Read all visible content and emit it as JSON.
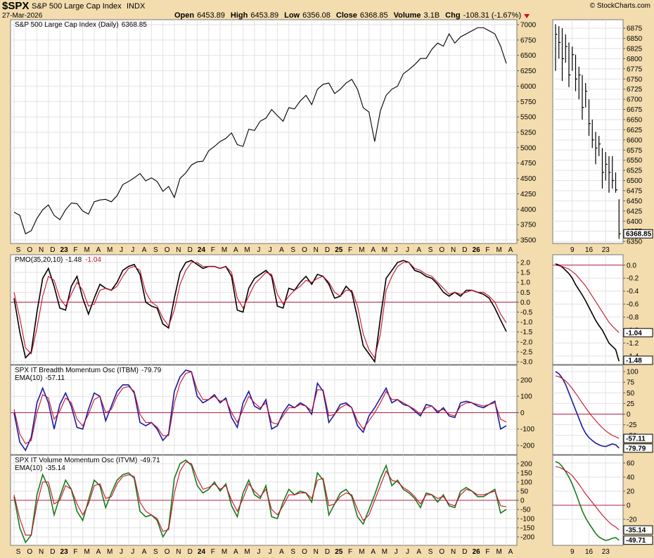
{
  "header": {
    "symbol": "$SPX",
    "name": "S&P 500 Large Cap Index",
    "exchange": "INDX",
    "date": "27-Mar-2026",
    "quote": [
      {
        "label": "Open",
        "value": "6453.89"
      },
      {
        "label": "High",
        "value": "6453.89"
      },
      {
        "label": "Low",
        "value": "6356.08"
      },
      {
        "label": "Close",
        "value": "6368.85"
      },
      {
        "label": "Volume",
        "value": "3.1B"
      },
      {
        "label": "Chg",
        "value": "-108.31 (-1.67%)"
      }
    ],
    "credit": "© StockCharts.com"
  },
  "chart_data": [
    {
      "type": "line",
      "grid": true,
      "categories": [
        "S",
        null,
        "O",
        null,
        "N",
        null,
        "D",
        null,
        "23",
        null,
        "F",
        null,
        "M",
        null,
        "A",
        null,
        "M",
        null,
        "J",
        null,
        "J",
        null,
        "A",
        null,
        "S",
        null,
        "O",
        null,
        "N",
        null,
        "D",
        null,
        "24",
        null,
        "F",
        null,
        "M",
        null,
        "A",
        null,
        "M",
        null,
        "J",
        null,
        "J",
        null,
        "A",
        null,
        "S",
        null,
        "O",
        null,
        "N",
        null,
        "D",
        null,
        "25",
        null,
        "F",
        null,
        "M",
        null,
        "A",
        null,
        "M",
        null,
        "J",
        null,
        "J",
        null,
        "A",
        null,
        "S",
        null,
        "O",
        null,
        "N",
        null,
        "D",
        null,
        "26",
        null,
        "F",
        null,
        "M",
        null,
        "A"
      ],
      "series": [
        {
          "name": "S&P 500 Large Cap Index (Daily)",
          "color": "#000000",
          "values": [
            3950,
            3900,
            3600,
            3650,
            3850,
            3990,
            4070,
            3900,
            3830,
            3990,
            4100,
            4090,
            3970,
            3920,
            4120,
            4150,
            4160,
            4120,
            4220,
            4400,
            4450,
            4510,
            4580,
            4460,
            4510,
            4450,
            4290,
            4370,
            4190,
            4500,
            4590,
            4720,
            4770,
            4780,
            4950,
            5020,
            5100,
            5150,
            5240,
            5050,
            5020,
            5300,
            5280,
            5430,
            5480,
            5620,
            5520,
            5430,
            5650,
            5630,
            5760,
            5850,
            5700,
            5950,
            6030,
            6050,
            5880,
            5950,
            6050,
            6110,
            5950,
            5650,
            5580,
            5100,
            5600,
            5850,
            5950,
            6000,
            6200,
            6270,
            6350,
            6450,
            6450,
            6600,
            6700,
            6650,
            6850,
            6700,
            6800,
            6850,
            6900,
            6950,
            6950,
            6900,
            6850,
            6650,
            6368.85
          ]
        }
      ],
      "ylim": [
        3443,
        7080
      ],
      "yticks": [
        3500,
        3750,
        4000,
        4250,
        4500,
        4750,
        5000,
        5250,
        5500,
        5750,
        6000,
        6250,
        6500,
        6750,
        7000
      ]
    },
    {
      "type": "line",
      "grid": true,
      "zero_line": true,
      "series": [
        {
          "name": "PMO(35,20,10)",
          "color": "#000000",
          "values": [
            0.2,
            -1.5,
            -2.8,
            -2.5,
            -0.5,
            1.2,
            1.7,
            0.8,
            -0.3,
            -0.4,
            0.8,
            1.3,
            0.2,
            -0.6,
            0.2,
            0.9,
            0.7,
            0.6,
            1.0,
            1.6,
            1.8,
            1.9,
            1.4,
            0.0,
            -0.2,
            -0.3,
            -1.1,
            -1.3,
            0.2,
            1.5,
            2.0,
            2.1,
            1.9,
            1.7,
            1.8,
            1.8,
            1.7,
            1.8,
            1.3,
            -0.4,
            -0.5,
            0.7,
            1.2,
            1.4,
            1.6,
            1.3,
            -0.2,
            -0.3,
            0.7,
            0.6,
            1.0,
            1.3,
            0.9,
            1.4,
            1.3,
            0.9,
            0.2,
            0.3,
            0.8,
            0.5,
            -0.8,
            -2.2,
            -2.6,
            -3.0,
            -0.8,
            1.2,
            1.6,
            2.0,
            2.1,
            2.0,
            1.6,
            1.5,
            1.3,
            1.2,
            0.9,
            0.5,
            0.3,
            0.5,
            0.3,
            0.6,
            0.6,
            0.5,
            0.4,
            0.2,
            -0.3,
            -0.9,
            -1.48
          ]
        },
        {
          "color": "#c8102e",
          "values": [
            0.5,
            -0.8,
            -2.3,
            -2.6,
            -1.3,
            0.3,
            1.3,
            1.1,
            0.2,
            -0.2,
            0.4,
            1.0,
            0.6,
            -0.2,
            -0.1,
            0.6,
            0.7,
            0.6,
            0.8,
            1.3,
            1.7,
            1.8,
            1.6,
            0.5,
            0.0,
            -0.2,
            -0.8,
            -1.2,
            -0.4,
            0.9,
            1.6,
            2.0,
            2.0,
            1.8,
            1.8,
            1.8,
            1.7,
            1.8,
            1.5,
            0.2,
            -0.3,
            0.3,
            0.9,
            1.2,
            1.5,
            1.4,
            0.4,
            -0.1,
            0.3,
            0.6,
            0.8,
            1.1,
            1.0,
            1.2,
            1.3,
            1.0,
            0.5,
            0.3,
            0.6,
            0.6,
            -0.2,
            -1.6,
            -2.4,
            -2.8,
            -1.6,
            0.6,
            1.3,
            1.8,
            2.0,
            2.0,
            1.7,
            1.6,
            1.4,
            1.3,
            1.0,
            0.7,
            0.4,
            0.5,
            0.4,
            0.5,
            0.6,
            0.5,
            0.5,
            0.3,
            0.0,
            -0.6,
            -1.04
          ]
        }
      ],
      "ylim": [
        -3.14,
        2.39
      ],
      "yticks": [
        {
          "value": 2,
          "label": "2.0"
        },
        1.5,
        {
          "value": 1,
          "label": "1.0"
        },
        0.5,
        {
          "value": 0,
          "label": "0.0"
        },
        -0.5,
        {
          "value": -1,
          "label": "-1.0"
        },
        -1.5,
        {
          "value": -2,
          "label": "-2.0"
        },
        -2.5,
        {
          "value": -3,
          "label": "-3.0"
        }
      ]
    },
    {
      "type": "line",
      "grid": true,
      "zero_line": true,
      "series": [
        {
          "name": "SPX IT Breadth Momentum Osc (ITBM)",
          "color": "#1a1aa0",
          "values": [
            0,
            -180,
            -230,
            -150,
            60,
            150,
            60,
            -100,
            50,
            120,
            40,
            -90,
            -100,
            20,
            120,
            100,
            -50,
            40,
            130,
            170,
            170,
            120,
            -60,
            -80,
            -60,
            -100,
            -170,
            -130,
            130,
            220,
            260,
            250,
            100,
            60,
            80,
            110,
            60,
            90,
            -30,
            -90,
            60,
            130,
            40,
            20,
            80,
            -100,
            -80,
            0,
            50,
            30,
            60,
            40,
            -10,
            180,
            130,
            -60,
            -10,
            50,
            60,
            30,
            -80,
            -120,
            -20,
            30,
            90,
            150,
            60,
            80,
            50,
            40,
            10,
            -20,
            50,
            40,
            0,
            30,
            -20,
            -30,
            60,
            70,
            60,
            40,
            30,
            50,
            70,
            -100,
            -79.79
          ]
        },
        {
          "name": "EMA(10)",
          "color": "#c8102e",
          "values": [
            20,
            -130,
            -190,
            -170,
            0,
            110,
            90,
            -40,
            10,
            90,
            60,
            -40,
            -80,
            -10,
            80,
            100,
            0,
            20,
            100,
            150,
            160,
            130,
            -10,
            -60,
            -60,
            -90,
            -140,
            -140,
            60,
            180,
            240,
            250,
            140,
            80,
            80,
            100,
            70,
            80,
            0,
            -60,
            20,
            100,
            60,
            30,
            60,
            -60,
            -70,
            -20,
            30,
            30,
            50,
            40,
            10,
            140,
            140,
            -20,
            -10,
            30,
            50,
            30,
            -50,
            -100,
            -50,
            0,
            60,
            130,
            80,
            80,
            60,
            40,
            20,
            -10,
            30,
            40,
            10,
            20,
            -10,
            -20,
            40,
            60,
            60,
            50,
            40,
            50,
            60,
            -40,
            -57.11
          ]
        }
      ],
      "ylim": [
        -256,
        290
      ],
      "yticks": [
        200,
        100,
        0,
        -100,
        -200
      ]
    },
    {
      "type": "line",
      "grid": true,
      "zero_line": true,
      "series": [
        {
          "name": "SPX IT Volume Momentum Osc (ITVM)",
          "color": "#1a7a1a",
          "values": [
            20,
            -150,
            -230,
            -190,
            30,
            140,
            70,
            -80,
            20,
            110,
            60,
            -60,
            -110,
            0,
            110,
            80,
            -40,
            40,
            110,
            140,
            150,
            120,
            -60,
            -90,
            -80,
            -110,
            -200,
            -150,
            120,
            200,
            220,
            190,
            80,
            40,
            60,
            100,
            50,
            90,
            -30,
            -90,
            40,
            110,
            30,
            10,
            80,
            -90,
            -100,
            -10,
            60,
            30,
            50,
            40,
            -10,
            150,
            110,
            -80,
            -20,
            40,
            60,
            20,
            -90,
            -130,
            -50,
            30,
            120,
            190,
            80,
            110,
            60,
            40,
            10,
            -40,
            40,
            30,
            -10,
            30,
            -30,
            -40,
            50,
            70,
            50,
            20,
            20,
            40,
            60,
            -70,
            -49.71
          ]
        },
        {
          "name": "EMA(10)",
          "color": "#c8102e",
          "values": [
            30,
            -100,
            -190,
            -190,
            -20,
            100,
            100,
            -20,
            0,
            80,
            60,
            -20,
            -80,
            -20,
            80,
            90,
            10,
            20,
            90,
            130,
            140,
            130,
            -10,
            -60,
            -80,
            -100,
            -170,
            -160,
            40,
            160,
            210,
            200,
            120,
            60,
            70,
            90,
            60,
            80,
            0,
            -60,
            10,
            90,
            50,
            20,
            60,
            -50,
            -80,
            -30,
            30,
            30,
            40,
            40,
            10,
            110,
            120,
            -30,
            -20,
            20,
            40,
            30,
            -50,
            -110,
            -80,
            0,
            80,
            160,
            110,
            100,
            70,
            50,
            20,
            -20,
            30,
            30,
            10,
            20,
            -20,
            -30,
            30,
            60,
            50,
            30,
            30,
            40,
            50,
            -30,
            -35.14
          ]
        }
      ],
      "ylim": [
        -246,
        246
      ],
      "yticks": [
        200,
        150,
        100,
        50,
        0,
        -50,
        -100,
        -150,
        -200
      ]
    },
    {
      "type": "hlc",
      "grid": true,
      "categories": [
        null,
        null,
        null,
        null,
        null,
        "9",
        null,
        null,
        null,
        null,
        "16",
        null,
        null,
        null,
        null,
        "23",
        null,
        null,
        null,
        null
      ],
      "high": [
        6885,
        6880,
        6875,
        6860,
        6840,
        6830,
        6810,
        6780,
        6760,
        6740,
        6700,
        6650,
        6620,
        6610,
        6580,
        6570,
        6560,
        6560,
        6520,
        6453.89
      ],
      "low": [
        6770,
        6800,
        6745,
        6790,
        6730,
        6770,
        6720,
        6700,
        6650,
        6680,
        6610,
        6580,
        6540,
        6560,
        6480,
        6500,
        6470,
        6480,
        6470,
        6356.08
      ],
      "close": [
        6860,
        6840,
        6800,
        6830,
        6760,
        6810,
        6750,
        6760,
        6680,
        6720,
        6640,
        6600,
        6580,
        6590,
        6520,
        6540,
        6520,
        6500,
        6477,
        6368.85
      ],
      "color": "#000000",
      "ylim": [
        6345,
        6896
      ],
      "yticks": [
        6350,
        6375,
        6400,
        6425,
        6450,
        6475,
        6500,
        6525,
        6550,
        6575,
        6600,
        6625,
        6650,
        6675,
        6700,
        6725,
        6750,
        6775,
        6800,
        6825,
        6850,
        6875
      ]
    },
    {
      "type": "line",
      "grid": true,
      "zero_line": true,
      "series": [
        {
          "color": "#000000",
          "values": [
            0.02,
            0.0,
            -0.03,
            -0.08,
            -0.13,
            -0.2,
            -0.3,
            -0.38,
            -0.46,
            -0.55,
            -0.65,
            -0.75,
            -0.85,
            -0.93,
            -1.0,
            -1.1,
            -1.2,
            -1.25,
            -1.3,
            -1.48
          ]
        },
        {
          "color": "#c8102e",
          "values": [
            0.0,
            -0.01,
            -0.02,
            -0.04,
            -0.06,
            -0.1,
            -0.14,
            -0.2,
            -0.26,
            -0.32,
            -0.4,
            -0.48,
            -0.56,
            -0.64,
            -0.72,
            -0.8,
            -0.88,
            -0.94,
            -0.99,
            -1.04
          ]
        }
      ],
      "ylim": [
        -1.53,
        0.16
      ],
      "yticks": [
        {
          "value": 0,
          "label": "0.0"
        },
        -0.2,
        -0.4,
        -0.6,
        -0.8,
        {
          "value": -1,
          "label": "-1.0"
        },
        -1.2,
        -1.4
      ]
    },
    {
      "type": "line",
      "grid": true,
      "zero_line": true,
      "series": [
        {
          "color": "#1a1aa0",
          "values": [
            100,
            95,
            85,
            70,
            50,
            30,
            10,
            -10,
            -30,
            -45,
            -55,
            -62,
            -68,
            -72,
            -75,
            -76,
            -73,
            -70,
            -72,
            -79.79
          ]
        },
        {
          "color": "#c8102e",
          "values": [
            90,
            88,
            84,
            78,
            70,
            60,
            49,
            38,
            26,
            15,
            4,
            -6,
            -15,
            -24,
            -32,
            -39,
            -45,
            -50,
            -53,
            -57.11
          ]
        }
      ],
      "ylim": [
        -95,
        115
      ],
      "yticks": [
        100,
        75,
        50,
        25,
        0,
        -25,
        -50,
        -75
      ]
    },
    {
      "type": "line",
      "grid": true,
      "zero_line": true,
      "series": [
        {
          "color": "#1a7a1a",
          "values": [
            62,
            60,
            55,
            48,
            40,
            30,
            18,
            5,
            -8,
            -18,
            -26,
            -33,
            -40,
            -45,
            -48,
            -50,
            -49,
            -47,
            -46,
            -49.71
          ]
        },
        {
          "color": "#c8102e",
          "values": [
            55,
            54,
            52,
            49,
            46,
            42,
            36,
            30,
            23,
            16,
            10,
            4,
            -2,
            -8,
            -14,
            -19,
            -24,
            -28,
            -31,
            -35.14
          ]
        }
      ],
      "ylim": [
        -57,
        71
      ],
      "yticks": [
        60,
        40,
        20,
        0,
        -20
      ]
    }
  ]
}
